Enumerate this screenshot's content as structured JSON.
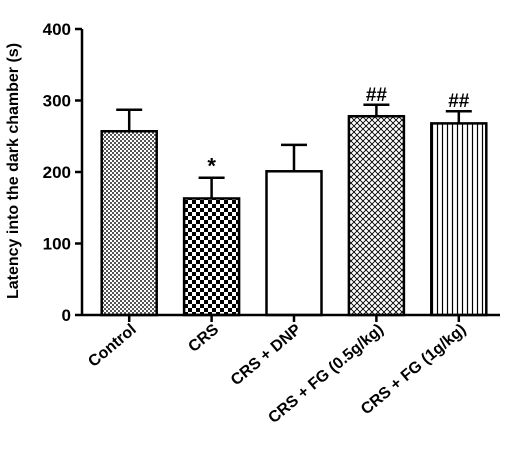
{
  "chart_data": {
    "type": "bar",
    "title": "",
    "xlabel": "",
    "ylabel": "Latency into the dark  chamber (s)",
    "ylim": [
      0,
      400
    ],
    "yticks": [
      0,
      100,
      200,
      300,
      400
    ],
    "grid": false,
    "categories": [
      "Control",
      "CRS",
      "CRS + DNP",
      "CRS + FG (0.5g/kg)",
      "CRS + FG (1g/kg)"
    ],
    "values": [
      257,
      163,
      201,
      278,
      268
    ],
    "errors": [
      30,
      29,
      37,
      16,
      17
    ],
    "patterns": [
      "fine-checker",
      "checker",
      "blank",
      "crosshatch",
      "vertical-lines"
    ],
    "annotations": [
      "",
      "*",
      "",
      "##",
      "##"
    ]
  }
}
